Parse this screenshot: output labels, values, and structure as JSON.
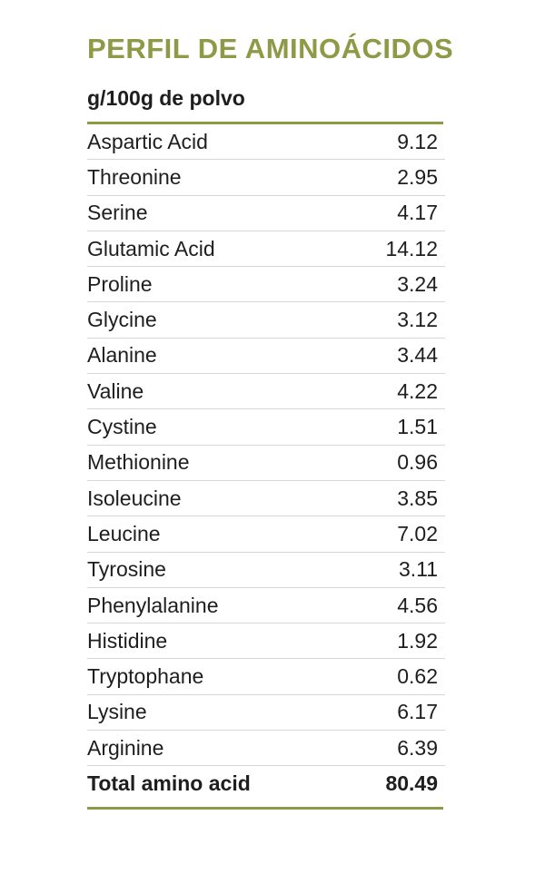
{
  "title": "PERFIL DE AMINOÁCIDOS",
  "subtitle": "g/100g de polvo",
  "rows": [
    {
      "name": "Aspartic Acid",
      "value": "9.12"
    },
    {
      "name": "Threonine",
      "value": "2.95"
    },
    {
      "name": "Serine",
      "value": "4.17"
    },
    {
      "name": "Glutamic Acid",
      "value": "14.12"
    },
    {
      "name": "Proline",
      "value": "3.24"
    },
    {
      "name": "Glycine",
      "value": "3.12"
    },
    {
      "name": "Alanine",
      "value": "3.44"
    },
    {
      "name": "Valine",
      "value": "4.22"
    },
    {
      "name": "Cystine",
      "value": "1.51"
    },
    {
      "name": "Methionine",
      "value": "0.96"
    },
    {
      "name": "Isoleucine",
      "value": "3.85"
    },
    {
      "name": "Leucine",
      "value": "7.02"
    },
    {
      "name": "Tyrosine",
      "value": "3.11"
    },
    {
      "name": "Phenylalanine",
      "value": "4.56"
    },
    {
      "name": "Histidine",
      "value": "1.92"
    },
    {
      "name": "Tryptophane",
      "value": "0.62"
    },
    {
      "name": "Lysine",
      "value": "6.17"
    },
    {
      "name": "Arginine",
      "value": "6.39"
    }
  ],
  "total": {
    "name": "Total amino acid",
    "value": "80.49"
  },
  "colors": {
    "accent": "#8e9a45",
    "text": "#1e1e1e",
    "divider": "#d6d6d6"
  }
}
